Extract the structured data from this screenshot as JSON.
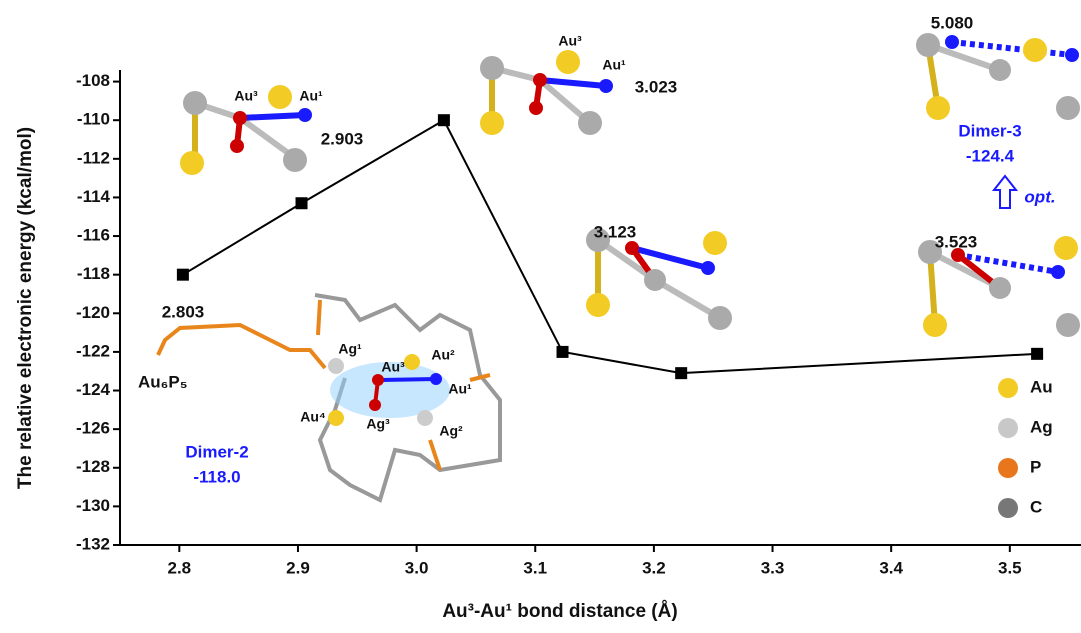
{
  "chart_data": {
    "type": "line",
    "x_label": "Au³-Au¹ bond distance (Å)",
    "y_label": "The relative electronic energy (kcal/mol)",
    "x": [
      2.803,
      2.903,
      3.023,
      3.123,
      3.223,
      3.523
    ],
    "series": [
      {
        "color": "#000000",
        "values": [
          -118.0,
          -114.3,
          -110.0,
          -122.0,
          -123.1,
          -122.1
        ]
      }
    ],
    "xlim": [
      2.75,
      3.56
    ],
    "xticks": [
      2.8,
      2.9,
      {
        "value": 3.0,
        "label": "3.0"
      },
      3.1,
      3.2,
      3.3,
      3.4,
      3.5
    ],
    "ylim": [
      -132,
      -107.4
    ],
    "yticks": [
      -132,
      -130,
      -128,
      -126,
      -124,
      -122,
      -120,
      -118,
      -116,
      -114,
      -112,
      -110,
      -108
    ],
    "annotations": [
      "2.803",
      "2.903",
      "3.023",
      "3.123",
      "3.523",
      "5.080",
      "Dimer-3",
      "-124.4",
      "opt.",
      "Dimer-2",
      "-118.0",
      "Au₆P₅",
      "Au³",
      "Au¹",
      "Au³",
      "Au¹",
      "Ag¹",
      "Au³",
      "Au²",
      "Au¹",
      "Au⁴",
      "Ag³",
      "Ag²"
    ],
    "legend": [
      {
        "name": "Au",
        "color": "#f2cc25"
      },
      {
        "name": "Ag",
        "color": "#c8c8c8"
      },
      {
        "name": "P",
        "color": "#e8761c"
      },
      {
        "name": "C",
        "color": "#777777"
      }
    ]
  }
}
